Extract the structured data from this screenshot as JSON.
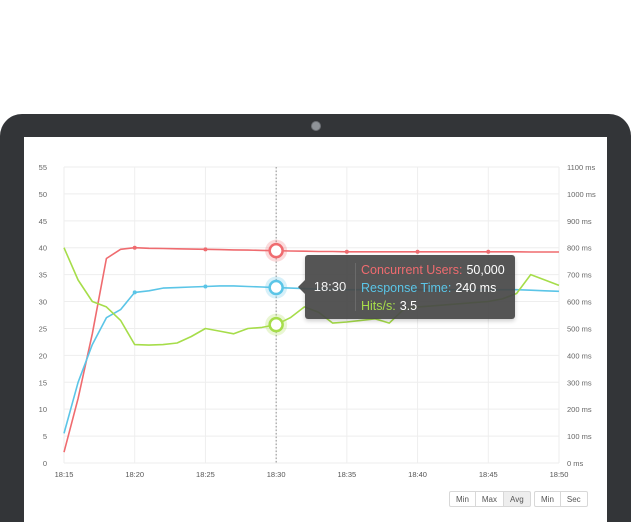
{
  "colors": {
    "users": "#ef6b6f",
    "response": "#5bc5e7",
    "hits": "#a6dd4a",
    "grid": "#eeeeee"
  },
  "chart_data": {
    "type": "line",
    "x": [
      "18:15",
      "18:16",
      "18:17",
      "18:18",
      "18:19",
      "18:20",
      "18:21",
      "18:22",
      "18:23",
      "18:24",
      "18:25",
      "18:26",
      "18:27",
      "18:28",
      "18:29",
      "18:30",
      "18:31",
      "18:32",
      "18:33",
      "18:34",
      "18:35",
      "18:36",
      "18:37",
      "18:38",
      "18:39",
      "18:40",
      "18:41",
      "18:42",
      "18:43",
      "18:44",
      "18:45",
      "18:46",
      "18:47",
      "18:48",
      "18:49",
      "18:50"
    ],
    "x_ticks": [
      "18:15",
      "18:20",
      "18:25",
      "18:30",
      "18:35",
      "18:40",
      "18:45",
      "18:50"
    ],
    "y_left": {
      "ticks": [
        0,
        5,
        10,
        15,
        20,
        25,
        30,
        35,
        40,
        45,
        50,
        55
      ],
      "ylim": [
        0,
        55
      ]
    },
    "y_right": {
      "ticks": [
        "0 ms",
        "100 ms",
        "200 ms",
        "300 ms",
        "400 ms",
        "500 ms",
        "600 ms",
        "700 ms",
        "800 ms",
        "900 ms",
        "1000 ms",
        "1100 ms"
      ],
      "ylim": [
        0,
        1100
      ]
    },
    "grid": true,
    "series": [
      {
        "key": "users",
        "axis": "left",
        "values": [
          2,
          12,
          24,
          38,
          39.7,
          40,
          39.9,
          39.85,
          39.8,
          39.75,
          39.7,
          39.65,
          39.6,
          39.55,
          39.5,
          39.45,
          39.4,
          39.35,
          39.3,
          39.3,
          39.25,
          39.25,
          39.25,
          39.25,
          39.25,
          39.25,
          39.25,
          39.25,
          39.25,
          39.25,
          39.25,
          39.25,
          39.25,
          39.2,
          39.2,
          39.2
        ]
      },
      {
        "key": "response",
        "axis": "left",
        "values": [
          5.5,
          15,
          22,
          27,
          28.5,
          31.7,
          32,
          32.5,
          32.6,
          32.7,
          32.8,
          32.9,
          32.9,
          32.8,
          32.7,
          32.6,
          32.5,
          32.4,
          32.3,
          32.3,
          32.2,
          32.2,
          32.2,
          32.2,
          32.2,
          32.2,
          32.2,
          32.2,
          32.2,
          32.2,
          32.2,
          32.2,
          32.2,
          32.1,
          32,
          31.9
        ]
      },
      {
        "key": "hits",
        "axis": "left",
        "values": [
          40,
          34,
          30,
          29,
          26.5,
          22,
          21.9,
          22,
          22.3,
          23.5,
          25,
          24.5,
          24,
          25,
          25.2,
          25.7,
          27,
          29,
          28,
          26,
          26.2,
          26.5,
          26.8,
          26,
          28.5,
          29,
          29.2,
          29.4,
          29.6,
          29.8,
          30,
          30.5,
          31.5,
          35,
          34,
          33
        ]
      }
    ],
    "markers": {
      "users": [
        "18:20",
        "18:25",
        "18:30",
        "18:35",
        "18:40",
        "18:45"
      ],
      "response": [
        "18:20",
        "18:25",
        "18:30"
      ],
      "hits": [
        "18:30"
      ]
    },
    "crosshair_x": "18:30",
    "highlight_x": "18:30"
  },
  "tooltip": {
    "time": "18:30",
    "rows": [
      {
        "label": "Concurrent Users:",
        "value": "50,000"
      },
      {
        "label": "Response Time:",
        "value": "240 ms"
      },
      {
        "label": "Hits/s:",
        "value": "3.5"
      }
    ]
  },
  "controls": {
    "group1": [
      "Min",
      "Max",
      "Avg"
    ],
    "group2": [
      "Min",
      "Sec"
    ],
    "active": "Avg"
  }
}
